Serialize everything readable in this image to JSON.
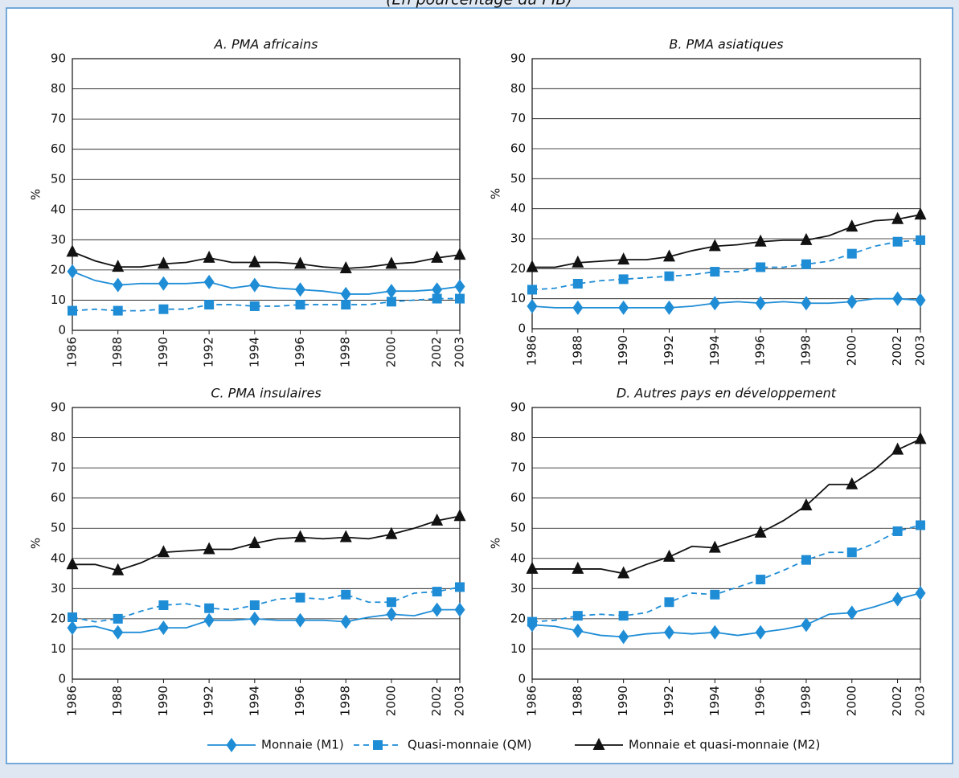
{
  "title": "(En pourcentage du PIB)",
  "chart_data": [
    {
      "type": "line",
      "title": "A. PMA africains",
      "y_label": "%",
      "x": [
        1986,
        1987,
        1988,
        1989,
        1990,
        1991,
        1992,
        1993,
        1994,
        1995,
        1996,
        1997,
        1998,
        1999,
        2000,
        2001,
        2002,
        2003
      ],
      "xlim": [
        1986,
        2003
      ],
      "xticks": [
        1986,
        1988,
        1990,
        1992,
        1994,
        1996,
        1998,
        2000,
        2002,
        2003
      ],
      "ylim": [
        0,
        90
      ],
      "yticks": [
        0,
        10,
        20,
        30,
        40,
        50,
        60,
        70,
        80,
        90
      ],
      "grid": true,
      "series": [
        {
          "name": "Monnaie (M1)",
          "color": "#1f8dd6",
          "marker": "diamond",
          "dash": false,
          "values": [
            19.5,
            16.5,
            15,
            15.5,
            15.5,
            15.5,
            16,
            14,
            15,
            14,
            13.5,
            13,
            12,
            12,
            13,
            13,
            13.5,
            14.5
          ]
        },
        {
          "name": "Quasi-monnaie (QM)",
          "color": "#1f8dd6",
          "marker": "square",
          "dash": true,
          "values": [
            6.5,
            7,
            6.5,
            6.5,
            7,
            7,
            8.5,
            8.5,
            8,
            8,
            8.5,
            8.5,
            8.5,
            8.5,
            9.5,
            10,
            10.5,
            10.5
          ]
        },
        {
          "name": "Monnaie et quasi-monnaie (M2)",
          "color": "#111111",
          "marker": "triangle",
          "dash": false,
          "values": [
            26,
            23,
            21,
            21,
            22,
            22.5,
            24,
            22.5,
            22.5,
            22.5,
            22,
            21,
            20.5,
            21,
            22,
            22.5,
            24,
            25
          ]
        }
      ]
    },
    {
      "type": "line",
      "title": "B. PMA asiatiques",
      "y_label": "%",
      "x": [
        1986,
        1987,
        1988,
        1989,
        1990,
        1991,
        1992,
        1993,
        1994,
        1995,
        1996,
        1997,
        1998,
        1999,
        2000,
        2001,
        2002,
        2003
      ],
      "xlim": [
        1986,
        2003
      ],
      "xticks": [
        1986,
        1988,
        1990,
        1992,
        1994,
        1996,
        1998,
        2000,
        2002,
        2003
      ],
      "ylim": [
        0,
        90
      ],
      "yticks": [
        0,
        10,
        20,
        30,
        40,
        50,
        60,
        70,
        80,
        90
      ],
      "grid": true,
      "series": [
        {
          "name": "Monnaie (M1)",
          "color": "#1f8dd6",
          "marker": "diamond",
          "dash": false,
          "values": [
            7.5,
            7,
            7,
            7,
            7,
            7,
            7,
            7.5,
            8.5,
            9,
            8.5,
            9,
            8.5,
            8.5,
            9,
            10,
            10,
            9.5
          ]
        },
        {
          "name": "Quasi-monnaie (QM)",
          "color": "#1f8dd6",
          "marker": "square",
          "dash": true,
          "values": [
            13,
            13.5,
            15,
            16,
            16.5,
            17,
            17.5,
            18,
            19,
            19,
            20.5,
            20.5,
            21.5,
            22.5,
            25,
            27.5,
            29,
            29.5
          ]
        },
        {
          "name": "Monnaie et quasi-monnaie (M2)",
          "color": "#111111",
          "marker": "triangle",
          "dash": false,
          "values": [
            20.5,
            20.5,
            22,
            22.5,
            23,
            23,
            24,
            26,
            27.5,
            28,
            29,
            29.5,
            29.5,
            31,
            34,
            36,
            36.5,
            38
          ]
        }
      ]
    },
    {
      "type": "line",
      "title": "C. PMA insulaires",
      "y_label": "%",
      "x": [
        1986,
        1987,
        1988,
        1989,
        1990,
        1991,
        1992,
        1993,
        1994,
        1995,
        1996,
        1997,
        1998,
        1999,
        2000,
        2001,
        2002,
        2003
      ],
      "xlim": [
        1986,
        2003
      ],
      "xticks": [
        1986,
        1988,
        1990,
        1992,
        1994,
        1996,
        1998,
        2000,
        2002,
        2003
      ],
      "ylim": [
        0,
        90
      ],
      "yticks": [
        0,
        10,
        20,
        30,
        40,
        50,
        60,
        70,
        80,
        90
      ],
      "grid": true,
      "series": [
        {
          "name": "Monnaie (M1)",
          "color": "#1f8dd6",
          "marker": "diamond",
          "dash": false,
          "values": [
            17,
            17.5,
            15.5,
            15.5,
            17,
            17,
            19.5,
            19.5,
            20,
            19.5,
            19.5,
            19.5,
            19,
            20.5,
            21.5,
            21,
            23,
            23
          ]
        },
        {
          "name": "Quasi-monnaie (QM)",
          "color": "#1f8dd6",
          "marker": "square",
          "dash": true,
          "values": [
            20.5,
            19,
            20,
            22.5,
            24.5,
            25,
            23.5,
            23,
            24.5,
            26.5,
            27,
            26.5,
            28,
            25.5,
            25.5,
            28.5,
            29,
            30.5
          ]
        },
        {
          "name": "Monnaie et quasi-monnaie (M2)",
          "color": "#111111",
          "marker": "triangle",
          "dash": false,
          "values": [
            38,
            38,
            36,
            38.5,
            42,
            42.5,
            43,
            43,
            45,
            46.5,
            47,
            46.5,
            47,
            46.5,
            48,
            50,
            52.5,
            54
          ]
        }
      ]
    },
    {
      "type": "line",
      "title": "D. Autres pays en développement",
      "y_label": "%",
      "x": [
        1986,
        1987,
        1988,
        1989,
        1990,
        1991,
        1992,
        1993,
        1994,
        1995,
        1996,
        1997,
        1998,
        1999,
        2000,
        2001,
        2002,
        2003
      ],
      "xlim": [
        1986,
        2003
      ],
      "xticks": [
        1986,
        1988,
        1990,
        1992,
        1994,
        1996,
        1998,
        2000,
        2002,
        2003
      ],
      "ylim": [
        0,
        90
      ],
      "yticks": [
        0,
        10,
        20,
        30,
        40,
        50,
        60,
        70,
        80,
        90
      ],
      "grid": true,
      "series": [
        {
          "name": "Monnaie (M1)",
          "color": "#1f8dd6",
          "marker": "diamond",
          "dash": false,
          "values": [
            18,
            17.5,
            16,
            14.5,
            14,
            15,
            15.5,
            15,
            15.5,
            14.5,
            15.5,
            16.5,
            18,
            21.5,
            22,
            24,
            26.5,
            28.5
          ]
        },
        {
          "name": "Quasi-monnaie (QM)",
          "color": "#1f8dd6",
          "marker": "square",
          "dash": true,
          "values": [
            19,
            19.5,
            21,
            21.5,
            21,
            22,
            25.5,
            28.5,
            28,
            30.5,
            33,
            36,
            39.5,
            42,
            42,
            45,
            49,
            51
          ]
        },
        {
          "name": "Monnaie et quasi-monnaie (M2)",
          "color": "#111111",
          "marker": "triangle",
          "dash": false,
          "values": [
            36.5,
            36.5,
            36.5,
            36.5,
            35,
            38,
            40.5,
            44,
            43.5,
            46,
            48.5,
            52.5,
            57.5,
            64.5,
            64.5,
            69.5,
            76,
            79.5
          ]
        }
      ]
    }
  ]
}
